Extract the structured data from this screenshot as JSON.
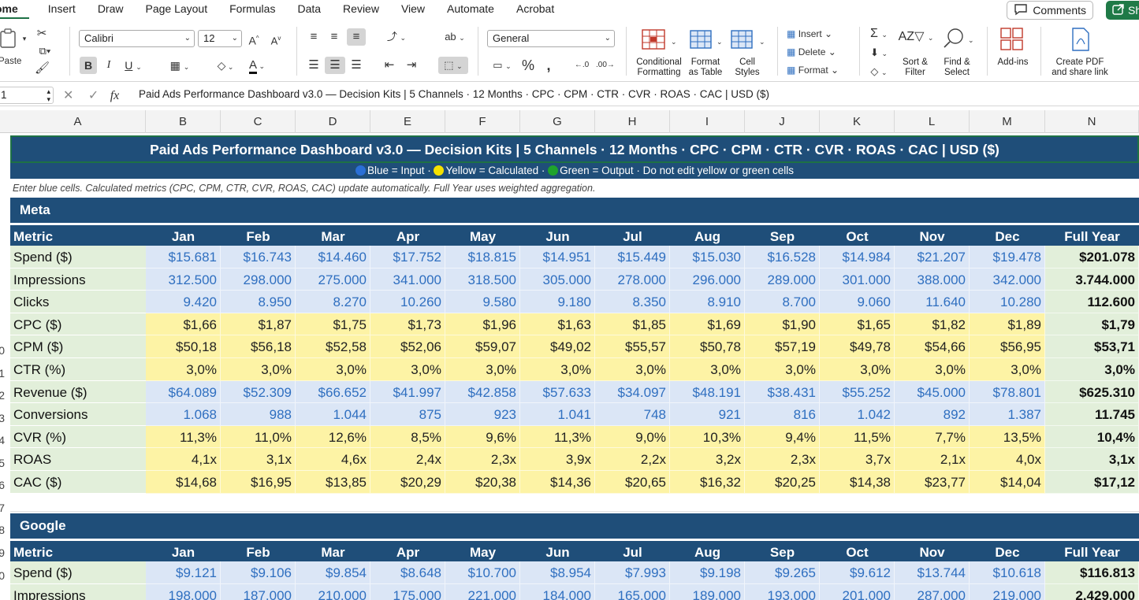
{
  "ribbon_tabs": [
    "ome",
    "Insert",
    "Draw",
    "Page Layout",
    "Formulas",
    "Data",
    "Review",
    "View",
    "Automate",
    "Acrobat"
  ],
  "buttons": {
    "comments": "Comments",
    "share": "Sh",
    "paste": "Paste"
  },
  "font": {
    "name": "Calibri",
    "size": "12"
  },
  "number_format": "General",
  "ribbon_labels": {
    "conditional": "Conditional\nFormatting",
    "format_table": "Format\nas Table",
    "cell_styles": "Cell\nStyles",
    "insert": "Insert",
    "delete": "Delete",
    "format": "Format",
    "sort_filter": "Sort &\nFilter",
    "find_select": "Find &\nSelect",
    "addins": "Add-ins",
    "create_pdf": "Create PDF\nand share link"
  },
  "name_box": "1",
  "formula": "Paid Ads Performance Dashboard v3.0 — Decision Kits  |  5 Channels · 12 Months · CPC · CPM · CTR · CVR · ROAS · CAC  |  USD ($)",
  "columns": [
    "A",
    "B",
    "C",
    "D",
    "E",
    "F",
    "G",
    "H",
    "I",
    "J",
    "K",
    "L",
    "M",
    "N"
  ],
  "title": "Paid Ads Performance Dashboard v3.0 — Decision Kits  |  5 Channels · 12 Months · CPC · CPM · CTR · CVR · ROAS · CAC  |  USD ($)",
  "legend": {
    "blue": "Blue = Input",
    "yellow": "Yellow = Calculated",
    "green": "Green = Output",
    "note": "Do not edit yellow or green cells",
    "colors": {
      "blue": "#2a6fd6",
      "yellow": "#f5e100",
      "green": "#1fa32c"
    }
  },
  "instructions": "Enter blue cells. Calculated metrics (CPC, CPM, CTR, CVR, ROAS, CAC) update automatically. Full Year uses weighted aggregation.",
  "row_numbers": [
    "0",
    "1",
    "2",
    "3",
    "4",
    "5",
    "6",
    "7",
    "8",
    "9",
    "0"
  ],
  "sections": [
    {
      "name": "Meta",
      "header": [
        "Metric",
        "Jan",
        "Feb",
        "Mar",
        "Apr",
        "May",
        "Jun",
        "Jul",
        "Aug",
        "Sep",
        "Oct",
        "Nov",
        "Dec",
        "Full Year"
      ],
      "rows": [
        {
          "type": "input",
          "label": "Spend ($)",
          "values": [
            "$15.681",
            "$16.743",
            "$14.460",
            "$17.752",
            "$18.815",
            "$14.951",
            "$15.449",
            "$15.030",
            "$16.528",
            "$14.984",
            "$21.207",
            "$19.478"
          ],
          "full_year": "$201.078"
        },
        {
          "type": "input",
          "label": "Impressions",
          "values": [
            "312.500",
            "298.000",
            "275.000",
            "341.000",
            "318.500",
            "305.000",
            "278.000",
            "296.000",
            "289.000",
            "301.000",
            "388.000",
            "342.000"
          ],
          "full_year": "3.744.000"
        },
        {
          "type": "input",
          "label": "Clicks",
          "values": [
            "9.420",
            "8.950",
            "8.270",
            "10.260",
            "9.580",
            "9.180",
            "8.350",
            "8.910",
            "8.700",
            "9.060",
            "11.640",
            "10.280"
          ],
          "full_year": "112.600"
        },
        {
          "type": "calc",
          "label": "CPC ($)",
          "values": [
            "$1,66",
            "$1,87",
            "$1,75",
            "$1,73",
            "$1,96",
            "$1,63",
            "$1,85",
            "$1,69",
            "$1,90",
            "$1,65",
            "$1,82",
            "$1,89"
          ],
          "full_year": "$1,79"
        },
        {
          "type": "calc",
          "label": "CPM ($)",
          "values": [
            "$50,18",
            "$56,18",
            "$52,58",
            "$52,06",
            "$59,07",
            "$49,02",
            "$55,57",
            "$50,78",
            "$57,19",
            "$49,78",
            "$54,66",
            "$56,95"
          ],
          "full_year": "$53,71"
        },
        {
          "type": "calc",
          "label": "CTR (%)",
          "values": [
            "3,0%",
            "3,0%",
            "3,0%",
            "3,0%",
            "3,0%",
            "3,0%",
            "3,0%",
            "3,0%",
            "3,0%",
            "3,0%",
            "3,0%",
            "3,0%"
          ],
          "full_year": "3,0%"
        },
        {
          "type": "input",
          "label": "Revenue ($)",
          "values": [
            "$64.089",
            "$52.309",
            "$66.652",
            "$41.997",
            "$42.858",
            "$57.633",
            "$34.097",
            "$48.191",
            "$38.431",
            "$55.252",
            "$45.000",
            "$78.801"
          ],
          "full_year": "$625.310"
        },
        {
          "type": "input",
          "label": "Conversions",
          "values": [
            "1.068",
            "988",
            "1.044",
            "875",
            "923",
            "1.041",
            "748",
            "921",
            "816",
            "1.042",
            "892",
            "1.387"
          ],
          "full_year": "11.745"
        },
        {
          "type": "calc",
          "label": "CVR (%)",
          "values": [
            "11,3%",
            "11,0%",
            "12,6%",
            "8,5%",
            "9,6%",
            "11,3%",
            "9,0%",
            "10,3%",
            "9,4%",
            "11,5%",
            "7,7%",
            "13,5%"
          ],
          "full_year": "10,4%"
        },
        {
          "type": "calc",
          "label": "ROAS",
          "values": [
            "4,1x",
            "3,1x",
            "4,6x",
            "2,4x",
            "2,3x",
            "3,9x",
            "2,2x",
            "3,2x",
            "2,3x",
            "3,7x",
            "2,1x",
            "4,0x"
          ],
          "full_year": "3,1x"
        },
        {
          "type": "calc",
          "label": "CAC ($)",
          "values": [
            "$14,68",
            "$16,95",
            "$13,85",
            "$20,29",
            "$20,38",
            "$14,36",
            "$20,65",
            "$16,32",
            "$20,25",
            "$14,38",
            "$23,77",
            "$14,04"
          ],
          "full_year": "$17,12"
        }
      ]
    },
    {
      "name": "Google",
      "header": [
        "Metric",
        "Jan",
        "Feb",
        "Mar",
        "Apr",
        "May",
        "Jun",
        "Jul",
        "Aug",
        "Sep",
        "Oct",
        "Nov",
        "Dec",
        "Full Year"
      ],
      "rows": [
        {
          "type": "input",
          "label": "Spend ($)",
          "values": [
            "$9.121",
            "$9.106",
            "$9.854",
            "$8.648",
            "$10.700",
            "$8.954",
            "$7.993",
            "$9.198",
            "$9.265",
            "$9.612",
            "$13.744",
            "$10.618"
          ],
          "full_year": "$116.813"
        },
        {
          "type": "input",
          "label": "Impressions",
          "values": [
            "198.000",
            "187.000",
            "210.000",
            "175.000",
            "221.000",
            "184.000",
            "165.000",
            "189.000",
            "193.000",
            "201.000",
            "287.000",
            "219.000"
          ],
          "full_year": "2.429.000"
        }
      ]
    }
  ]
}
